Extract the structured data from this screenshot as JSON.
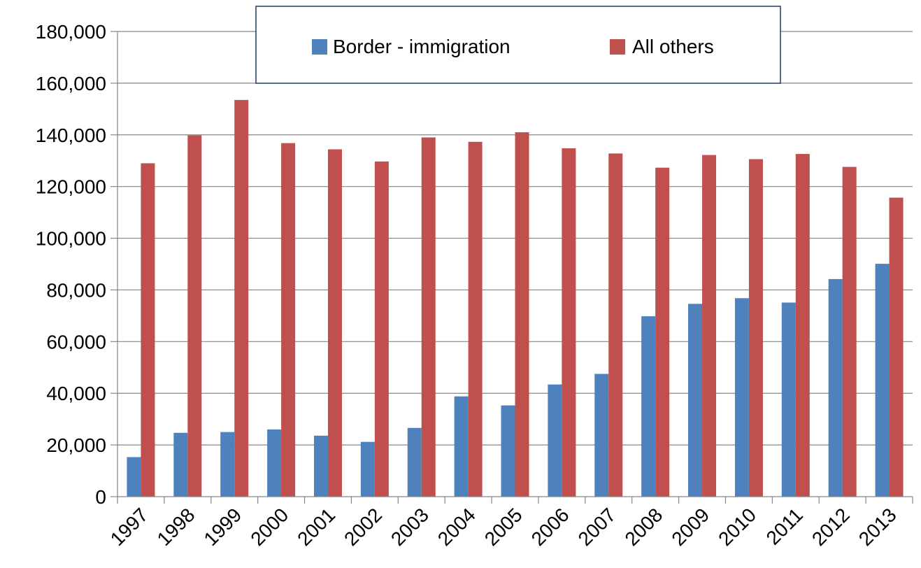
{
  "chart_data": {
    "type": "bar",
    "categories": [
      "1997",
      "1998",
      "1999",
      "2000",
      "2001",
      "2002",
      "2003",
      "2004",
      "2005",
      "2006",
      "2007",
      "2008",
      "2009",
      "2010",
      "2011",
      "2012",
      "2013"
    ],
    "series": [
      {
        "name": "Border - immigration",
        "color": "#4f81bd",
        "values": [
          15300,
          24700,
          25000,
          26000,
          23600,
          21200,
          26600,
          38800,
          35300,
          43400,
          47500,
          69800,
          74600,
          76800,
          75100,
          84200,
          90100
        ]
      },
      {
        "name": "All others",
        "color": "#c0504d",
        "values": [
          129000,
          139800,
          153500,
          136800,
          134400,
          129700,
          139000,
          137300,
          141000,
          134800,
          132800,
          127300,
          132200,
          130600,
          132600,
          127600,
          115700
        ]
      }
    ],
    "ylim": [
      0,
      180000
    ],
    "yticks": [
      0,
      20000,
      40000,
      60000,
      80000,
      100000,
      120000,
      140000,
      160000,
      180000
    ],
    "ytick_labels": [
      "0",
      "20,000",
      "40,000",
      "60,000",
      "80,000",
      "100,000",
      "120,000",
      "140,000",
      "160,000",
      "180,000"
    ],
    "grid": true,
    "legend_position": "top-center"
  }
}
